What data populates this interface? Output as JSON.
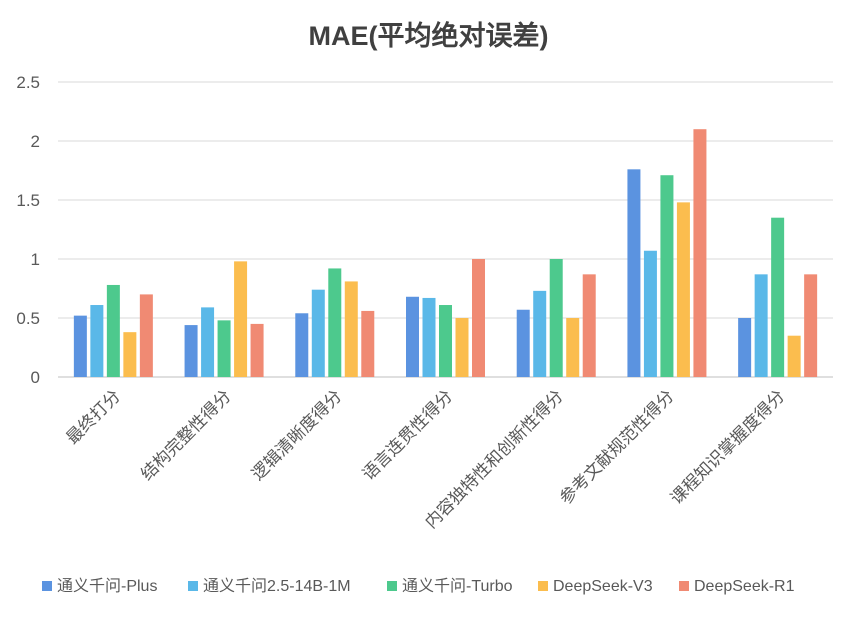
{
  "chart_data": {
    "type": "bar",
    "title": "MAE(平均绝对误差)",
    "xlabel": "",
    "ylabel": "",
    "ylim": [
      0,
      2.5
    ],
    "yticks": [
      "0",
      "0.5",
      "1",
      "1.5",
      "2",
      "2.5"
    ],
    "grid": true,
    "legend_position": "bottom",
    "categories": [
      "最终打分",
      "结构完整性得分",
      "逻辑清晰度得分",
      "语言连贯性得分",
      "内容独特性和创新性得分",
      "参考文献规范性得分",
      "课程知识掌握度得分"
    ],
    "series": [
      {
        "name": "通义千问-Plus",
        "color": "#5B93E0",
        "values": [
          0.52,
          0.44,
          0.54,
          0.68,
          0.57,
          1.76,
          0.5
        ]
      },
      {
        "name": "通义千问2.5-14B-1M",
        "color": "#5AB8E8",
        "values": [
          0.61,
          0.59,
          0.74,
          0.67,
          0.73,
          1.07,
          0.87
        ]
      },
      {
        "name": "通义千问-Turbo",
        "color": "#4DC98D",
        "values": [
          0.78,
          0.48,
          0.92,
          0.61,
          1.0,
          1.71,
          1.35
        ]
      },
      {
        "name": "DeepSeek-V3",
        "color": "#FBBD4E",
        "values": [
          0.38,
          0.98,
          0.81,
          0.5,
          0.5,
          1.48,
          0.35
        ]
      },
      {
        "name": "DeepSeek-R1",
        "color": "#F08A73",
        "values": [
          0.7,
          0.45,
          0.56,
          1.0,
          0.87,
          2.1,
          0.87
        ]
      }
    ]
  }
}
